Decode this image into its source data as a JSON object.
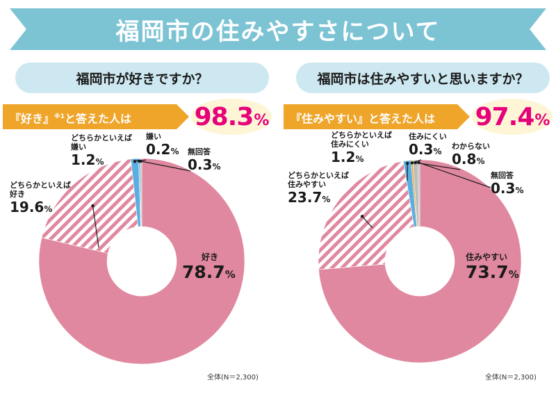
{
  "banner": {
    "title": "福岡市の住みやすさについて"
  },
  "colors": {
    "banner": "#7cc3d4",
    "callout": "#efa52a",
    "highlight": "#e6007a",
    "pink": "#e0889f",
    "blue": "#5aaee0",
    "orange": "#efa52a",
    "gray": "#bdbdbd"
  },
  "chart_data": [
    {
      "type": "pie",
      "title": "福岡市が好きですか？",
      "callout": "『好き』",
      "callout_note": "※1",
      "callout_rest": "と答えた人は",
      "headline_value": "98.3",
      "headline_unit": "%",
      "total_note": "全体(N＝2,300)",
      "unit": "%",
      "slices": [
        {
          "label": "好き",
          "value": 78.7
        },
        {
          "label": "どちらかといえば好き",
          "label_lines": [
            "どちらかといえば",
            "好き"
          ],
          "value": 19.6
        },
        {
          "label": "どちらかといえば嫌い",
          "label_lines": [
            "どちらかといえば",
            "嫌い"
          ],
          "value": 1.2
        },
        {
          "label": "嫌い",
          "value": 0.2
        },
        {
          "label": "無回答",
          "value": 0.3
        }
      ]
    },
    {
      "type": "pie",
      "title": "福岡市は住みやすいと思いますか？",
      "callout": "『住みやすい』",
      "callout_note": "",
      "callout_rest": "と答えた人は",
      "headline_value": "97.4",
      "headline_unit": "%",
      "total_note": "全体(N＝2,300)",
      "unit": "%",
      "slices": [
        {
          "label": "住みやすい",
          "value": 73.7
        },
        {
          "label": "どちらかといえば住みやすい",
          "label_lines": [
            "どちらかといえば",
            "住みやすい"
          ],
          "value": 23.7
        },
        {
          "label": "どちらかといえば住みにくい",
          "label_lines": [
            "どちらかといえば",
            "住みにくい"
          ],
          "value": 1.2
        },
        {
          "label": "住みにくい",
          "value": 0.3
        },
        {
          "label": "わからない",
          "value": 0.8
        },
        {
          "label": "無回答",
          "value": 0.3
        }
      ]
    }
  ]
}
